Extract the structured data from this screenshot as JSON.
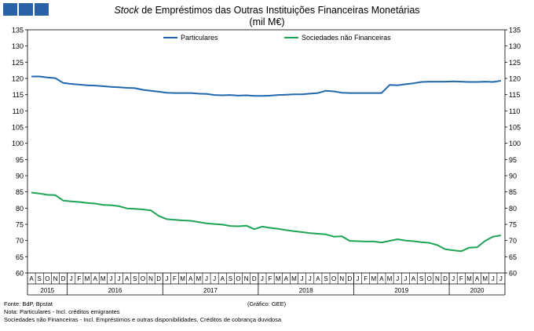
{
  "logo_icon": "bdp-logo-icon",
  "title_italic": "Stock",
  "title_rest": " de Empréstimos das Outras Instituições Financeiras Monetárias",
  "subtitle": "(mil M€)",
  "footer": {
    "source": "Fonte: BdP, Bpstat",
    "note": "Nota: Particulares - Incl. créditos emigrantes",
    "note2": "Sociedades não Financeiras - Incl. Empréstimos e outras disponibilidades, Créditos de cobrança duvidosa",
    "credit": "(Gráfico: GEE)"
  },
  "chart_data": {
    "type": "line",
    "ylim": [
      60,
      135
    ],
    "yticks": [
      60,
      65,
      70,
      75,
      80,
      85,
      90,
      95,
      100,
      105,
      110,
      115,
      120,
      125,
      130,
      135
    ],
    "grid": false,
    "legend_position": "top",
    "month_labels": [
      "A",
      "S",
      "O",
      "N",
      "D",
      "J",
      "F",
      "M",
      "A",
      "M",
      "J",
      "J",
      "A",
      "S",
      "O",
      "N",
      "D",
      "J",
      "F",
      "M",
      "A",
      "M",
      "J",
      "J",
      "A",
      "S",
      "O",
      "N",
      "D",
      "J",
      "F",
      "M",
      "A",
      "M",
      "J",
      "J",
      "A",
      "S",
      "O",
      "N",
      "D",
      "J",
      "F",
      "M",
      "A",
      "M",
      "J",
      "J",
      "A",
      "S",
      "O",
      "N",
      "D",
      "J",
      "F",
      "M",
      "A",
      "M",
      "J",
      "J"
    ],
    "years": [
      {
        "label": "2015",
        "start": 0,
        "end": 5
      },
      {
        "label": "2016",
        "start": 5,
        "end": 17
      },
      {
        "label": "2017",
        "start": 17,
        "end": 29
      },
      {
        "label": "2018",
        "start": 29,
        "end": 41
      },
      {
        "label": "2019",
        "start": 41,
        "end": 53
      },
      {
        "label": "2020",
        "start": 53,
        "end": 60
      }
    ],
    "series": [
      {
        "name": "Particulares",
        "color": "#2167ae",
        "values": [
          120.6,
          120.6,
          120.3,
          120.1,
          118.6,
          118.3,
          118.1,
          117.9,
          117.8,
          117.6,
          117.4,
          117.3,
          117.1,
          117.0,
          116.5,
          116.2,
          115.9,
          115.6,
          115.5,
          115.5,
          115.5,
          115.3,
          115.2,
          114.9,
          114.8,
          114.9,
          114.7,
          114.8,
          114.6,
          114.6,
          114.7,
          114.9,
          115.0,
          115.1,
          115.1,
          115.3,
          115.5,
          116.2,
          116.0,
          115.6,
          115.5,
          115.5,
          115.5,
          115.5,
          115.5,
          118.0,
          117.9,
          118.2,
          118.5,
          118.9,
          119.0,
          119.0,
          119.0,
          119.1,
          119.0,
          118.9,
          118.9,
          119.0,
          118.9,
          119.3
        ]
      },
      {
        "name": "Sociedades não Financeiras",
        "color": "#1fa354",
        "values": [
          84.8,
          84.5,
          84.1,
          84.0,
          82.3,
          82.1,
          81.9,
          81.6,
          81.4,
          81.0,
          80.9,
          80.6,
          79.9,
          79.8,
          79.6,
          79.3,
          77.6,
          76.6,
          76.4,
          76.2,
          76.1,
          75.7,
          75.3,
          75.1,
          74.9,
          74.5,
          74.4,
          74.6,
          73.5,
          74.3,
          73.9,
          73.6,
          73.2,
          72.9,
          72.6,
          72.3,
          72.1,
          71.9,
          71.2,
          71.3,
          69.9,
          69.8,
          69.7,
          69.7,
          69.4,
          69.9,
          70.4,
          70.0,
          69.8,
          69.5,
          69.3,
          68.6,
          67.3,
          67.0,
          66.7,
          67.8,
          67.9,
          69.9,
          71.2,
          71.6
        ]
      }
    ]
  }
}
